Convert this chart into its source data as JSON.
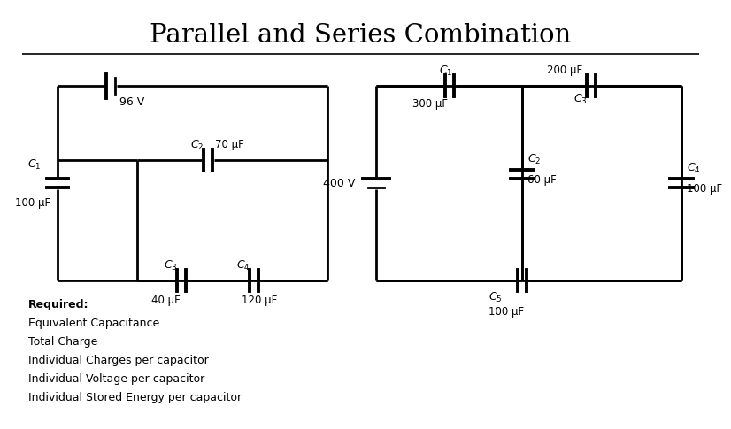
{
  "title": "Parallel and Series Combination",
  "bg_color": "#ffffff",
  "title_fontsize": 21,
  "c1_voltage": "96 V",
  "c1_C1": "100 μF",
  "c1_C2": "70 μF",
  "c1_C3": "40 μF",
  "c1_C4": "120 μF",
  "c2_voltage": "400 V",
  "c2_C1": "300 μF",
  "c2_C2": "60 μF",
  "c2_C3": "200 μF",
  "c2_C4": "100 μF",
  "c2_C5": "100 μF",
  "required_text": [
    "Required:",
    "Equivalent Capacitance",
    "Total Charge",
    "Individual Charges per capacitor",
    "Individual Voltage per capacitor",
    "Individual Stored Energy per capacitor"
  ],
  "lw": 2.0,
  "lc": "#000000",
  "tc": "#000000"
}
